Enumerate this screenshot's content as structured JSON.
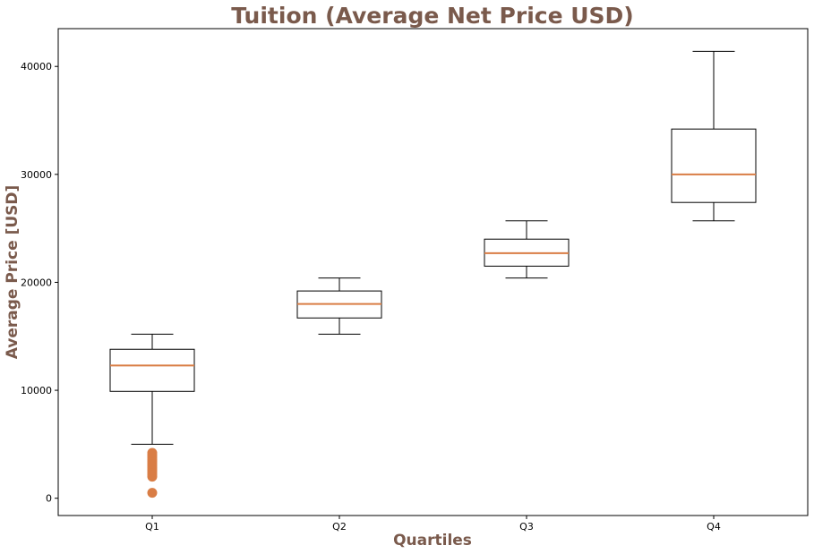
{
  "chart_data": {
    "type": "box",
    "title": "Tuition (Average Net Price USD)",
    "xlabel": "Quartiles",
    "ylabel": "Average Price [USD]",
    "categories": [
      "Q1",
      "Q2",
      "Q3",
      "Q4"
    ],
    "ylim": [
      -1600,
      43500
    ],
    "yticks": [
      0,
      10000,
      20000,
      30000,
      40000
    ],
    "ytick_labels": [
      "0",
      "10000",
      "20000",
      "30000",
      "40000"
    ],
    "boxes": [
      {
        "label": "Q1",
        "whisker_low": 5000,
        "q1": 9900,
        "median": 12300,
        "q3": 13800,
        "whisker_high": 15200,
        "outliers": [
          500,
          2000,
          2200,
          2400,
          2600,
          2800,
          3000,
          3200,
          3400,
          3600,
          3800,
          4000,
          4200
        ]
      },
      {
        "label": "Q2",
        "whisker_low": 15200,
        "q1": 16700,
        "median": 18000,
        "q3": 19200,
        "whisker_high": 20400,
        "outliers": []
      },
      {
        "label": "Q3",
        "whisker_low": 20400,
        "q1": 21500,
        "median": 22700,
        "q3": 24000,
        "whisker_high": 25700,
        "outliers": []
      },
      {
        "label": "Q4",
        "whisker_low": 25700,
        "q1": 27400,
        "median": 30000,
        "q3": 34200,
        "whisker_high": 41400,
        "outliers": []
      }
    ],
    "grid": false,
    "colors": {
      "title": "#7a5a4c",
      "axis_label": "#7a5a4c",
      "median": "#d97d45",
      "outlier": "#d97d45",
      "box": "#000000"
    }
  }
}
